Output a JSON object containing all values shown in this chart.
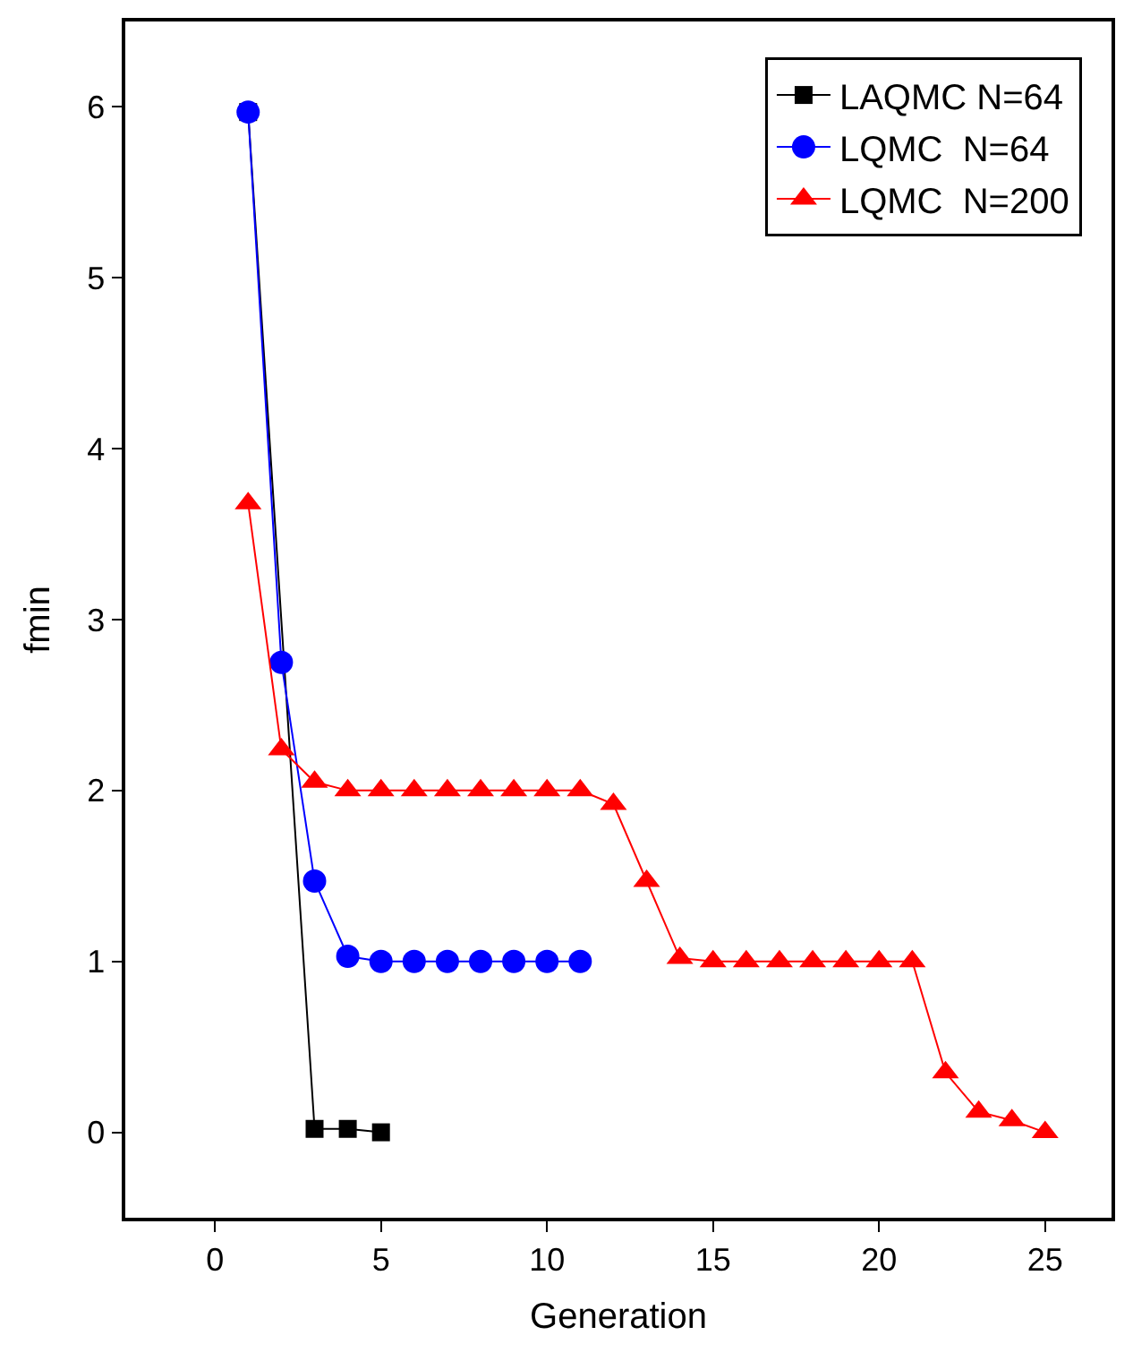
{
  "chart_data": {
    "type": "line",
    "xlabel": "Generation",
    "ylabel": "fmin",
    "xlim": [
      -2.7,
      27
    ],
    "xticks": [
      0,
      5,
      10,
      15,
      20,
      25
    ],
    "ylim": [
      -0.5,
      6.5
    ],
    "yticks": [
      0,
      1,
      2,
      3,
      4,
      5,
      6
    ],
    "legend": "top right",
    "line_style": "solid",
    "series": [
      {
        "name": "LAQMC N=64",
        "color": "#000000",
        "marker": "square",
        "x": [
          1,
          3,
          4,
          5
        ],
        "values": [
          5.97,
          0.02,
          0.02,
          0.0
        ]
      },
      {
        "name": "LQMC  N=64",
        "color": "#0000ff",
        "marker": "circle",
        "x": [
          1,
          2,
          3,
          4,
          5,
          6,
          7,
          8,
          9,
          10,
          11
        ],
        "values": [
          5.97,
          2.75,
          1.47,
          1.03,
          1.0,
          1.0,
          1.0,
          1.0,
          1.0,
          1.0,
          1.0
        ]
      },
      {
        "name": "LQMC  N=200",
        "color": "#ff0000",
        "marker": "triangle",
        "x": [
          1,
          2,
          3,
          4,
          5,
          6,
          7,
          8,
          9,
          10,
          11,
          12,
          13,
          14,
          15,
          16,
          17,
          18,
          19,
          20,
          21,
          22,
          23,
          24,
          25
        ],
        "values": [
          3.68,
          2.24,
          2.05,
          2.0,
          2.0,
          2.0,
          2.0,
          2.0,
          2.0,
          2.0,
          2.0,
          1.92,
          1.47,
          1.02,
          1.0,
          1.0,
          1.0,
          1.0,
          1.0,
          1.0,
          1.0,
          0.35,
          0.12,
          0.07,
          0.0
        ]
      }
    ]
  }
}
